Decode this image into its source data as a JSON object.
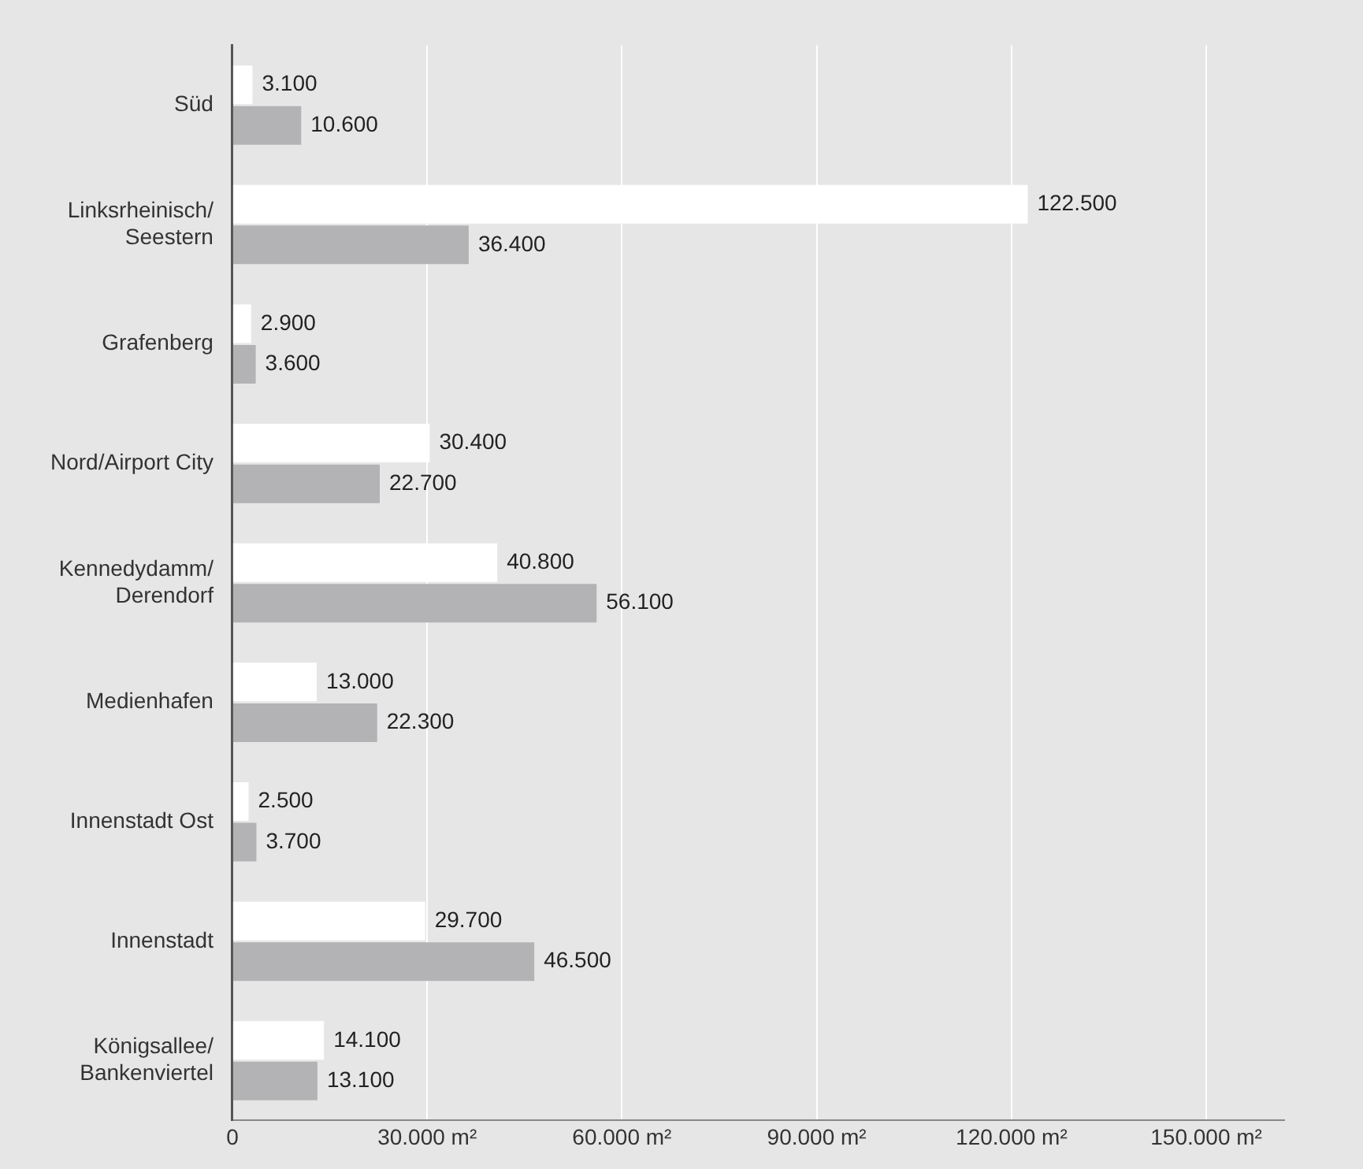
{
  "chart_data": {
    "type": "bar",
    "orientation": "horizontal",
    "categories": [
      "Süd",
      "Linksrheinisch/ Seestern",
      "Grafenberg",
      "Nord/Airport City",
      "Kennedydamm/ Derendorf",
      "Medienhafen",
      "Innenstadt Ost",
      "Innenstadt",
      "Königsallee/ Bankenviertel"
    ],
    "series": [
      {
        "color": "#ffffff",
        "values": [
          3100,
          122500,
          2900,
          30400,
          40800,
          13000,
          2500,
          29700,
          14100
        ],
        "value_labels": [
          "3.100",
          "122.500",
          "2.900",
          "30.400",
          "40.800",
          "13.000",
          "2.500",
          "29.700",
          "14.100"
        ]
      },
      {
        "color": "#b3b3b5",
        "values": [
          10600,
          36400,
          3600,
          22700,
          56100,
          22300,
          3700,
          46500,
          13100
        ],
        "value_labels": [
          "10.600",
          "36.400",
          "3.600",
          "22.700",
          "56.100",
          "22.300",
          "3.700",
          "46.500",
          "13.100"
        ]
      }
    ],
    "xlim": [
      0,
      162000
    ],
    "xticks": [
      0,
      {
        "value": 30000,
        "label": "30.000 m²"
      },
      {
        "value": 60000,
        "label": "60.000 m²"
      },
      {
        "value": 90000,
        "label": "90.000 m²"
      },
      {
        "value": 120000,
        "label": "120.000 m²"
      },
      {
        "value": 150000,
        "label": "150.000 m²"
      }
    ],
    "grid": "x",
    "legend": false
  }
}
